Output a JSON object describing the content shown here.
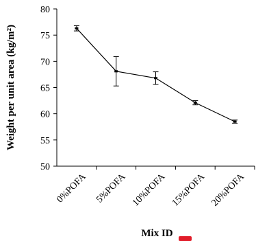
{
  "chart_data": {
    "type": "line",
    "categories": [
      "0%POFA",
      "5%POFA",
      "10%POFA",
      "15%POFA",
      "20%POFA"
    ],
    "series": [
      {
        "values": [
          76.3,
          68.1,
          66.8,
          62.1,
          58.5
        ],
        "errors": [
          0.5,
          2.8,
          1.2,
          0.4,
          0.3
        ]
      }
    ],
    "xlabel": "Mix ID",
    "ylabel": "Weight per unit area (kg/m²)",
    "ylim": [
      50,
      80
    ],
    "yticks": [
      50,
      55,
      60,
      65,
      70,
      75,
      80
    ],
    "grid": false
  }
}
